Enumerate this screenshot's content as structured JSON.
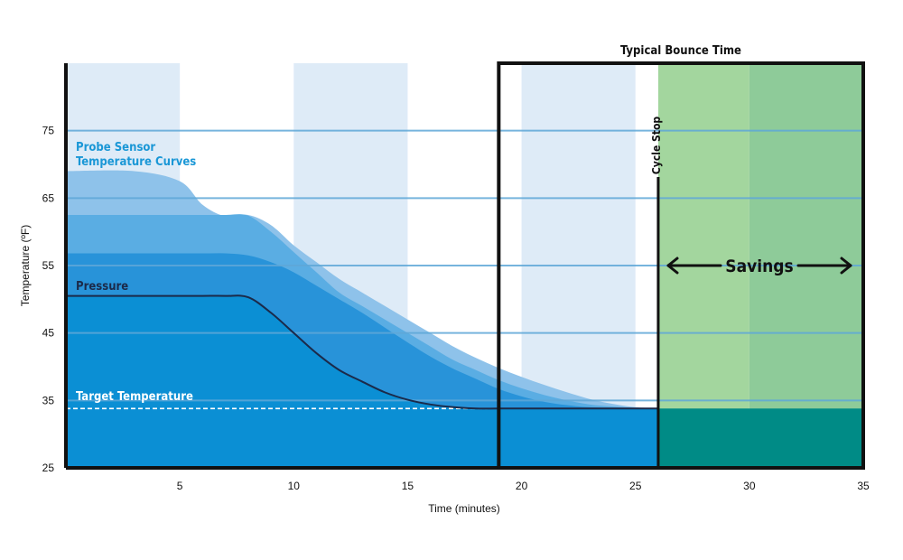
{
  "chart_data": {
    "type": "area",
    "xlabel": "Time (minutes)",
    "ylabel": "Temperature (ºF)",
    "xlim": [
      0,
      35
    ],
    "ylim": [
      25,
      85
    ],
    "x_ticks": [
      5,
      10,
      15,
      20,
      25,
      30,
      35
    ],
    "y_ticks": [
      25,
      35,
      45,
      55,
      65,
      75
    ],
    "grid": "horizontal",
    "x": [
      0,
      3,
      5,
      6,
      7,
      8,
      9,
      10,
      11,
      12,
      13,
      14,
      15,
      16,
      17,
      18,
      19,
      20,
      21,
      22,
      23,
      24,
      25,
      26
    ],
    "series": [
      {
        "name": "Probe Sensor Temperature Curves",
        "values": [
          69,
          69,
          67.5,
          64,
          62.3,
          62.5,
          61,
          58,
          55.5,
          53,
          51,
          49,
          47,
          45,
          43,
          41.3,
          39.8,
          38.5,
          37.3,
          36.2,
          35.2,
          34.5,
          34.0,
          33.8
        ]
      },
      {
        "values": [
          62.5,
          62.5,
          62.5,
          62.5,
          62.5,
          62.4,
          60,
          57,
          54,
          51,
          49,
          47,
          45,
          43,
          41,
          39.5,
          38,
          36.8,
          35.8,
          35,
          34.4,
          34.1,
          33.9,
          33.8
        ]
      },
      {
        "values": [
          56.8,
          56.8,
          56.8,
          56.8,
          56.8,
          56.5,
          55.5,
          54,
          52,
          50,
          48,
          45.8,
          43.6,
          41.5,
          39.7,
          38.2,
          36.7,
          35.6,
          34.8,
          34.3,
          34.0,
          33.9,
          33.8,
          33.8
        ]
      },
      {
        "name": "Pressure",
        "values": [
          50.5,
          50.5,
          50.5,
          50.5,
          50.5,
          50.3,
          48,
          45,
          42,
          39.5,
          37.8,
          36.2,
          35.1,
          34.4,
          34.0,
          33.8,
          33.8,
          33.8,
          33.8,
          33.8,
          33.8,
          33.8,
          33.8,
          33.8
        ]
      }
    ],
    "target_temperature": 33.8,
    "annotations": {
      "probe_label_line1": "Probe Sensor",
      "probe_label_line2": "Temperature Curves",
      "pressure_label": "Pressure",
      "target_label": "Target Temperature",
      "bounce_title": "Typical Bounce Time",
      "cycle_stop": "Cycle Stop",
      "savings": "Savings"
    },
    "bounce_window": [
      19,
      35
    ],
    "cycle_stop_x": 26,
    "colors": {
      "band": "#deebf7",
      "curve_light": "#8ec2ea",
      "curve_mid": "#5aade3",
      "curve_dark": "#2893d9",
      "base": "#0b8fd4",
      "savings_light": "#a3d69e",
      "savings_dark": "#8ecb99",
      "savings_base": "#008b86",
      "gridline": "#5fa8d8",
      "label_blue": "#1a97d6",
      "pressure_line": "#1b2a4a"
    }
  }
}
